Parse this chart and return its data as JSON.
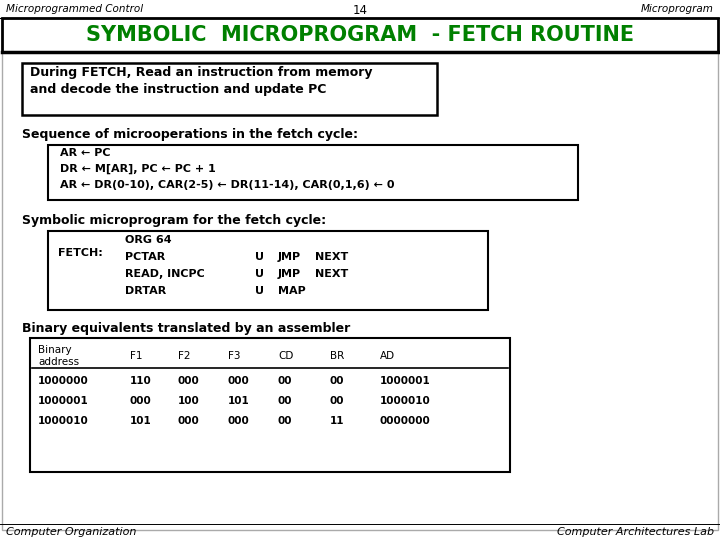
{
  "bg_color": "#ffffff",
  "title_text": "SYMBOLIC  MICROPROGRAM  - FETCH ROUTINE",
  "title_color": "#008000",
  "title_bg": "#ffffff",
  "header_left": "Microprogrammed Control",
  "header_center": "14",
  "header_right": "Microprogram",
  "footer_left": "Computer Organization",
  "footer_right": "Computer Architectures Lab",
  "box1_lines": [
    "During FETCH, Read an instruction from memory",
    "and decode the instruction and update PC"
  ],
  "section1_title": "Sequence of microoperations in the fetch cycle:",
  "seq_lines": [
    "AR ← PC",
    "DR ← M[AR], PC ← PC + 1",
    "AR ← DR(0-10), CAR(2-5) ← DR(11-14), CAR(0,1,6) ← 0"
  ],
  "section2_title": "Symbolic microprogram for the fetch cycle:",
  "fetch_label": "FETCH:",
  "fetch_col1": [
    "ORG 64",
    "PCTAR",
    "READ, INCPC",
    "DRTAR"
  ],
  "fetch_col2": [
    "",
    "U",
    "U",
    "U"
  ],
  "fetch_col3": [
    "",
    "JMP",
    "JMP",
    "MAP"
  ],
  "fetch_col4": [
    "",
    "NEXT",
    "NEXT",
    ""
  ],
  "section3_title": "Binary equivalents translated by an assembler",
  "table_header1": [
    "Binary",
    "address",
    "F1",
    "F2",
    "F3",
    "CD",
    "BR",
    "AD"
  ],
  "table_rows": [
    [
      "1000000",
      "110",
      "000",
      "000",
      "00",
      "00",
      "1000001"
    ],
    [
      "1000001",
      "000",
      "100",
      "101",
      "00",
      "00",
      "1000010"
    ],
    [
      "1000010",
      "101",
      "000",
      "000",
      "00",
      "11",
      "0000000"
    ]
  ]
}
